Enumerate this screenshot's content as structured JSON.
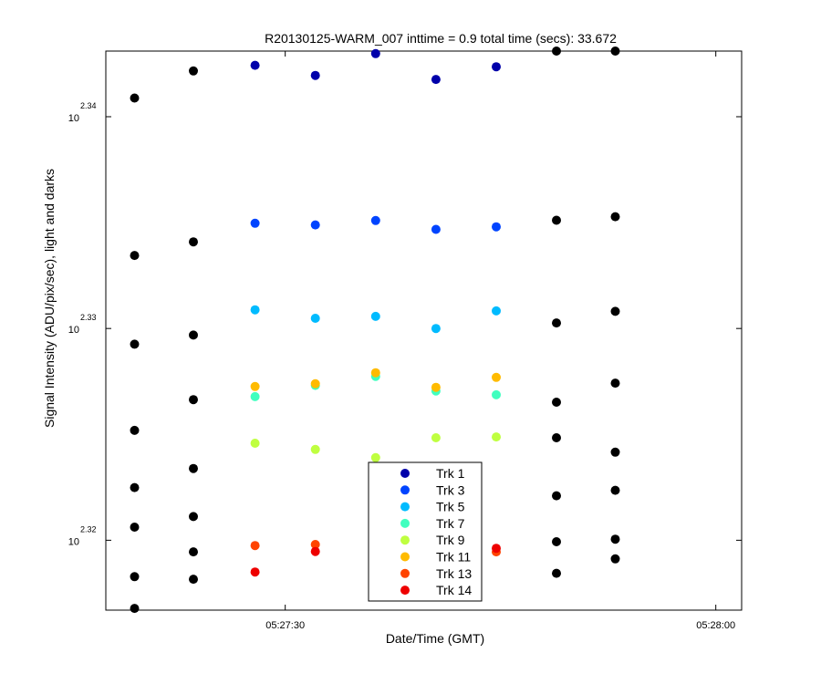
{
  "chart_data": {
    "type": "scatter",
    "title": "R20130125-WARM_007 inttime = 0.9 total time (secs): 33.672",
    "xlabel": "Date/Time (GMT)",
    "ylabel": "Signal Intensity (ADU/pix/sec), light and darks",
    "y_scale": "log",
    "x_ticks": [
      {
        "t": 30,
        "label": "05:27:30"
      },
      {
        "t": 60,
        "label": "05:28:00"
      }
    ],
    "x_range_seconds_after_0527": [
      17.5,
      61.8
    ],
    "y_ticks": [
      {
        "log10": 2.32,
        "base": "10",
        "exp": "2.32"
      },
      {
        "log10": 2.33,
        "base": "10",
        "exp": "2.33"
      },
      {
        "log10": 2.34,
        "base": "10",
        "exp": "2.34"
      }
    ],
    "ylim_log10": [
      2.3167,
      2.3431
    ],
    "grid": false,
    "legend_position": "bottom-center",
    "x_values_seconds_after_0527": [
      19.5,
      23.6,
      27.9,
      32.1,
      36.3,
      40.5,
      44.7,
      48.9,
      53.0
    ],
    "series": [
      {
        "name": "Trk 1",
        "color": "#0000aa",
        "points": [
          [
            27.9,
            2.34243
          ],
          [
            32.1,
            2.34195
          ],
          [
            36.3,
            2.34298
          ],
          [
            40.5,
            2.34176
          ],
          [
            44.7,
            2.34236
          ]
        ]
      },
      {
        "name": "Trk 3",
        "color": "#0044ff",
        "points": [
          [
            27.9,
            2.33497
          ],
          [
            32.1,
            2.33489
          ],
          [
            36.3,
            2.3351
          ],
          [
            40.5,
            2.33468
          ],
          [
            44.7,
            2.3348
          ]
        ]
      },
      {
        "name": "Trk 5",
        "color": "#00bbff",
        "points": [
          [
            27.9,
            2.33088
          ],
          [
            32.1,
            2.33048
          ],
          [
            36.3,
            2.33057
          ],
          [
            40.5,
            2.33
          ],
          [
            44.7,
            2.33083
          ]
        ]
      },
      {
        "name": "Trk 7",
        "color": "#40ffbf",
        "points": [
          [
            27.9,
            2.32678
          ],
          [
            32.1,
            2.32731
          ],
          [
            36.3,
            2.32774
          ],
          [
            40.5,
            2.32705
          ],
          [
            44.7,
            2.32687
          ]
        ]
      },
      {
        "name": "Trk 9",
        "color": "#bfff40",
        "points": [
          [
            27.9,
            2.32458
          ],
          [
            32.1,
            2.32429
          ],
          [
            36.3,
            2.3239
          ],
          [
            40.5,
            2.32484
          ],
          [
            44.7,
            2.32488
          ]
        ]
      },
      {
        "name": "Trk 11",
        "color": "#ffbb00",
        "points": [
          [
            27.9,
            2.32726
          ],
          [
            32.1,
            2.32739
          ],
          [
            36.3,
            2.32791
          ],
          [
            40.5,
            2.32722
          ],
          [
            44.7,
            2.32769
          ]
        ]
      },
      {
        "name": "Trk 13",
        "color": "#ff4400",
        "points": [
          [
            27.9,
            2.31975
          ],
          [
            32.1,
            2.3198
          ],
          [
            44.7,
            2.31945
          ]
        ]
      },
      {
        "name": "Trk 14",
        "color": "#ee0000",
        "points": [
          [
            27.9,
            2.3185
          ],
          [
            32.1,
            2.31947
          ],
          [
            44.7,
            2.31962
          ]
        ]
      },
      {
        "name": "",
        "color": "#000000",
        "points": [
          [
            19.5,
            2.34088
          ],
          [
            19.5,
            2.33345
          ],
          [
            19.5,
            2.32926
          ],
          [
            19.5,
            2.32519
          ],
          [
            19.5,
            2.32249
          ],
          [
            19.5,
            2.32062
          ],
          [
            19.5,
            2.31828
          ],
          [
            19.5,
            2.31678
          ],
          [
            23.6,
            2.34216
          ],
          [
            23.6,
            2.33409
          ],
          [
            23.6,
            2.32969
          ],
          [
            23.6,
            2.32664
          ],
          [
            23.6,
            2.32339
          ],
          [
            23.6,
            2.32112
          ],
          [
            23.6,
            2.31945
          ],
          [
            23.6,
            2.31816
          ],
          [
            48.9,
            2.3431
          ],
          [
            48.9,
            2.33511
          ],
          [
            48.9,
            2.33026
          ],
          [
            48.9,
            2.32652
          ],
          [
            48.9,
            2.32484
          ],
          [
            48.9,
            2.3221
          ],
          [
            48.9,
            2.31993
          ],
          [
            48.9,
            2.31844
          ],
          [
            53.0,
            2.3431
          ],
          [
            53.0,
            2.33528
          ],
          [
            53.0,
            2.33081
          ],
          [
            53.0,
            2.32742
          ],
          [
            53.0,
            2.32416
          ],
          [
            53.0,
            2.32236
          ],
          [
            53.0,
            2.32005
          ],
          [
            53.0,
            2.31912
          ]
        ]
      }
    ]
  }
}
